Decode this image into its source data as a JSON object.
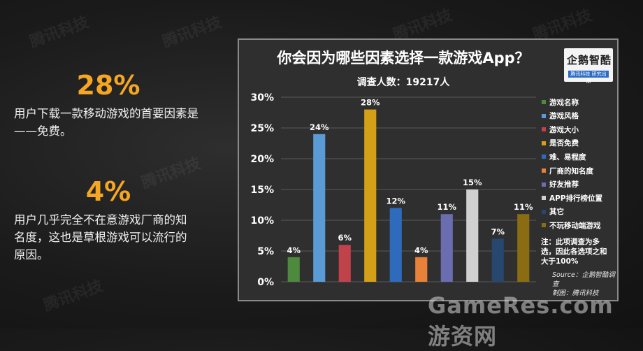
{
  "watermark": "腾讯科技",
  "stats": [
    {
      "value": "28%",
      "desc_lines": [
        "用户下载一款移动游戏的首要因素是",
        "——免费。"
      ]
    },
    {
      "value": "4%",
      "desc_lines": [
        "用户几乎完全不在意游戏厂商的知",
        "名度，这也是草根游戏可以流行的",
        "原因。"
      ]
    }
  ],
  "logo": {
    "text": "企鹅智酷",
    "sub": "腾讯科技 研究出品"
  },
  "note_lines": [
    "注：此项调查为多",
    "选，因此各选项之和",
    "大于100%"
  ],
  "source_lines": [
    "Source：企鹅智酷调查",
    "制图：腾讯科技"
  ],
  "site_watermark": "GameRes.com 游资网",
  "chart_data": {
    "type": "bar",
    "title": "你会因为哪些因素选择一款游戏App？",
    "subtitle": "调查人数：19217人",
    "ylim": [
      0,
      30
    ],
    "yticks": [
      "0%",
      "5%",
      "10%",
      "15%",
      "20%",
      "25%",
      "30%"
    ],
    "grid": true,
    "legend_position": "right",
    "categories": [
      "游戏名称",
      "游戏风格",
      "游戏大小",
      "是否免费",
      "难、易程度",
      "厂商的知名度",
      "好友推荐",
      "APP排行榜位置",
      "其它",
      "不玩移动端游戏"
    ],
    "values": [
      4,
      24,
      6,
      28,
      12,
      4,
      11,
      15,
      7,
      11
    ],
    "value_labels": [
      "4%",
      "24%",
      "6%",
      "28%",
      "12%",
      "4%",
      "11%",
      "15%",
      "7%",
      "11%"
    ],
    "colors": [
      "#4e8a3d",
      "#5b9bd5",
      "#c0424b",
      "#d4a017",
      "#2e6bbd",
      "#e8823a",
      "#6a6db0",
      "#d0d0d0",
      "#27476e",
      "#8a6d12"
    ]
  }
}
